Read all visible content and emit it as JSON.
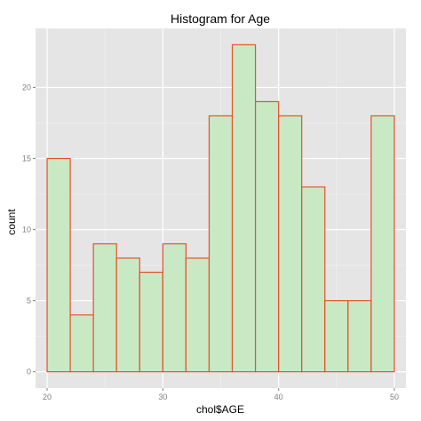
{
  "chart_data": {
    "type": "bar",
    "title": "Histogram for Age",
    "xlabel": "chol$AGE",
    "ylabel": "count",
    "bin_width": 2,
    "bins": [
      {
        "x0": 20,
        "x1": 22,
        "count": 15
      },
      {
        "x0": 22,
        "x1": 24,
        "count": 4
      },
      {
        "x0": 24,
        "x1": 26,
        "count": 9
      },
      {
        "x0": 26,
        "x1": 28,
        "count": 8
      },
      {
        "x0": 28,
        "x1": 30,
        "count": 7
      },
      {
        "x0": 30,
        "x1": 32,
        "count": 9
      },
      {
        "x0": 32,
        "x1": 34,
        "count": 8
      },
      {
        "x0": 34,
        "x1": 36,
        "count": 18
      },
      {
        "x0": 36,
        "x1": 38,
        "count": 23
      },
      {
        "x0": 38,
        "x1": 40,
        "count": 19
      },
      {
        "x0": 40,
        "x1": 42,
        "count": 18
      },
      {
        "x0": 42,
        "x1": 44,
        "count": 13
      },
      {
        "x0": 44,
        "x1": 46,
        "count": 5
      },
      {
        "x0": 46,
        "x1": 48,
        "count": 5
      },
      {
        "x0": 48,
        "x1": 50,
        "count": 18
      }
    ],
    "xticks": [
      "20",
      "30",
      "40",
      "50"
    ],
    "yticks": [
      "0",
      "5",
      "10",
      "15",
      "20"
    ],
    "xlim": [
      19.0,
      51.0
    ],
    "ylim": [
      -1.15,
      24.15
    ],
    "grid": true,
    "colors": {
      "panel": "#e5e5e5",
      "grid_major": "#ffffff",
      "grid_minor": "#f2f2f2",
      "bar_fill": "#c8e9c4",
      "bar_stroke": "#e6502a",
      "tick_text": "#7f7f7f",
      "tick_mark": "#7f7f7f"
    }
  }
}
